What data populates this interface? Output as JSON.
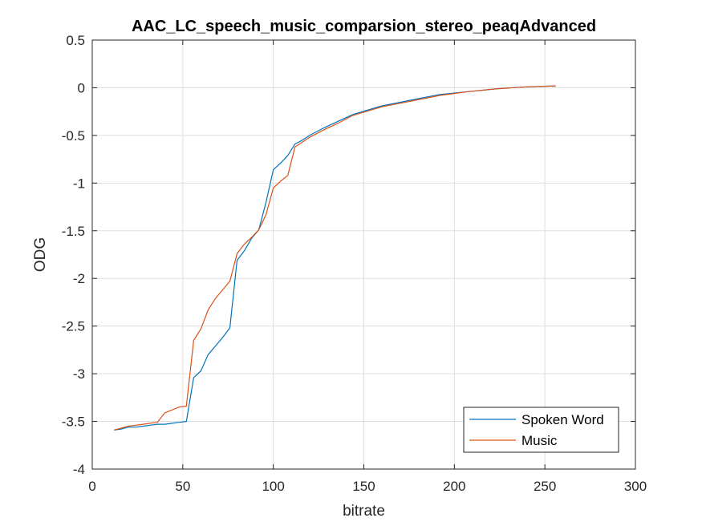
{
  "chart_data": {
    "type": "line",
    "title": "AAC_LC_speech_music_comparsion_stereo_peaqAdvanced",
    "xlabel": "bitrate",
    "ylabel": "ODG",
    "xlim": [
      0,
      300
    ],
    "ylim": [
      -4,
      0.5
    ],
    "xticks": [
      0,
      50,
      100,
      150,
      200,
      250,
      300
    ],
    "xtick_labels": [
      "0",
      "50",
      "100",
      "150",
      "200",
      "250",
      "300"
    ],
    "yticks": [
      0.5,
      0,
      -0.5,
      -1,
      -1.5,
      -2,
      -2.5,
      -3,
      -3.5,
      -4
    ],
    "ytick_labels": [
      "0.5",
      "0",
      "-0.5",
      "-1",
      "-1.5",
      "-2",
      "-2.5",
      "-3",
      "-3.5",
      "-4"
    ],
    "grid": true,
    "legend_position": "bottom-right",
    "series": [
      {
        "name": "Spoken Word",
        "color": "#0072BD",
        "x": [
          12,
          16,
          20,
          24,
          28,
          32,
          36,
          40,
          44,
          48,
          52,
          56,
          60,
          64,
          68,
          72,
          76,
          80,
          84,
          88,
          92,
          96,
          100,
          104,
          108,
          112,
          116,
          120,
          128,
          136,
          144,
          160,
          176,
          192,
          208,
          224,
          240,
          256
        ],
        "y": [
          -3.59,
          -3.58,
          -3.56,
          -3.56,
          -3.55,
          -3.54,
          -3.53,
          -3.53,
          -3.52,
          -3.51,
          -3.5,
          -3.04,
          -2.97,
          -2.8,
          -2.71,
          -2.62,
          -2.52,
          -1.81,
          -1.71,
          -1.58,
          -1.49,
          -1.2,
          -0.86,
          -0.79,
          -0.71,
          -0.59,
          -0.55,
          -0.5,
          -0.42,
          -0.35,
          -0.28,
          -0.19,
          -0.13,
          -0.07,
          -0.04,
          -0.01,
          0.01,
          0.02
        ]
      },
      {
        "name": "Music",
        "color": "#D95319",
        "x": [
          12,
          16,
          20,
          24,
          28,
          32,
          36,
          40,
          44,
          48,
          52,
          56,
          60,
          64,
          68,
          72,
          76,
          80,
          84,
          88,
          92,
          96,
          100,
          104,
          108,
          112,
          116,
          120,
          128,
          136,
          144,
          160,
          176,
          192,
          208,
          224,
          240,
          256
        ],
        "y": [
          -3.59,
          -3.57,
          -3.55,
          -3.54,
          -3.53,
          -3.52,
          -3.51,
          -3.41,
          -3.38,
          -3.35,
          -3.34,
          -2.65,
          -2.53,
          -2.33,
          -2.21,
          -2.12,
          -2.03,
          -1.74,
          -1.64,
          -1.57,
          -1.49,
          -1.33,
          -1.05,
          -0.98,
          -0.92,
          -0.62,
          -0.57,
          -0.52,
          -0.44,
          -0.37,
          -0.29,
          -0.2,
          -0.14,
          -0.08,
          -0.04,
          -0.01,
          0.01,
          0.02
        ]
      }
    ]
  }
}
